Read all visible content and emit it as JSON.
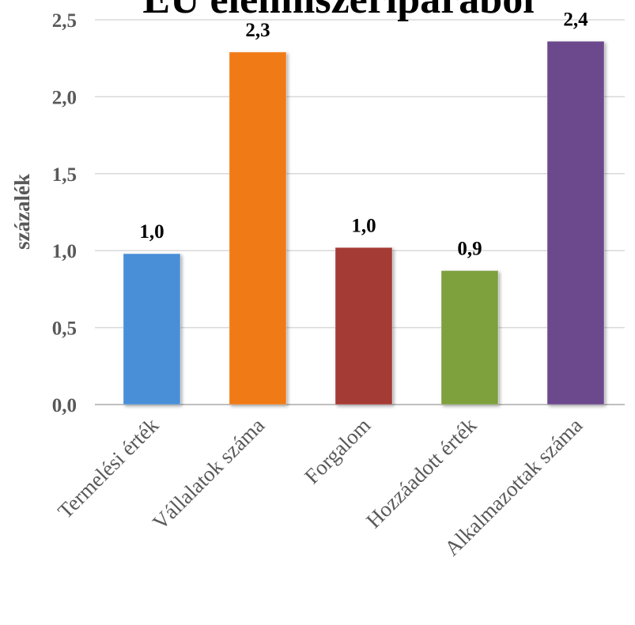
{
  "chart_data": {
    "type": "bar",
    "title": "EU élelmiszeriparából",
    "xlabel": "",
    "ylabel": "százalék",
    "categories": [
      "Termelési érték",
      "Vállalatok száma",
      "Forgalom",
      "Hozzáadott érték",
      "Alkalmazottak száma"
    ],
    "values": [
      0.98,
      2.29,
      1.02,
      0.87,
      2.36
    ],
    "data_labels": [
      "1,0",
      "2,3",
      "1,0",
      "0,9",
      "2,4"
    ],
    "ylim": [
      0,
      2.5
    ],
    "yticks": [
      0.0,
      0.5,
      1.0,
      1.5,
      2.0,
      2.5
    ],
    "ytick_labels": [
      "0,0",
      "0,5",
      "1,0",
      "1,5",
      "2,0",
      "2,5"
    ],
    "colors": [
      "#4a8fd8",
      "#f07a12",
      "#a53a36",
      "#7ea03e",
      "#6c4a8c"
    ],
    "grid": true,
    "legend": "none"
  }
}
